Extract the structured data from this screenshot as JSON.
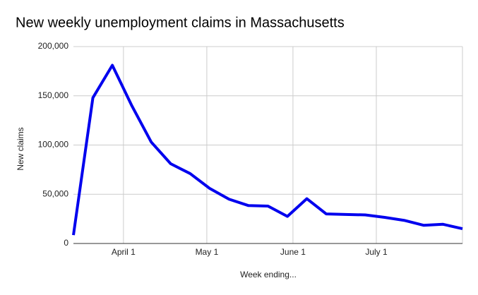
{
  "chart_data": {
    "type": "line",
    "title": "New weekly unemployment claims in Massachusetts",
    "x_label": "Week ending...",
    "y_label": "New claims",
    "x": [
      "March 14",
      "March 21",
      "March 28",
      "April 4",
      "April 11",
      "April 18",
      "April 25",
      "May 2",
      "May 9",
      "May 16",
      "May 23",
      "May 30",
      "June 6",
      "June 13",
      "June 20",
      "June 27",
      "July 4",
      "July 11",
      "July 18",
      "July 25",
      "August 1"
    ],
    "series": [
      {
        "name": "New claims",
        "color": "#0000ee",
        "values": [
          8500,
          148000,
          181000,
          140000,
          103000,
          81000,
          71000,
          56000,
          45000,
          38500,
          38000,
          27500,
          45500,
          30000,
          29500,
          29000,
          26500,
          23500,
          18500,
          19500,
          15000
        ]
      }
    ],
    "xlim": [
      "March 14",
      "August 1"
    ],
    "xticks": [
      "April 1",
      "May 1",
      "June 1",
      "July 1"
    ],
    "ylim": [
      0,
      200000
    ],
    "yticks": [
      0,
      {
        "value": 50000,
        "label": "50,000"
      },
      {
        "value": 100000,
        "label": "100,000"
      },
      {
        "value": 150000,
        "label": "150,000"
      },
      {
        "value": 200000,
        "label": "200,000"
      }
    ],
    "grid": true
  }
}
